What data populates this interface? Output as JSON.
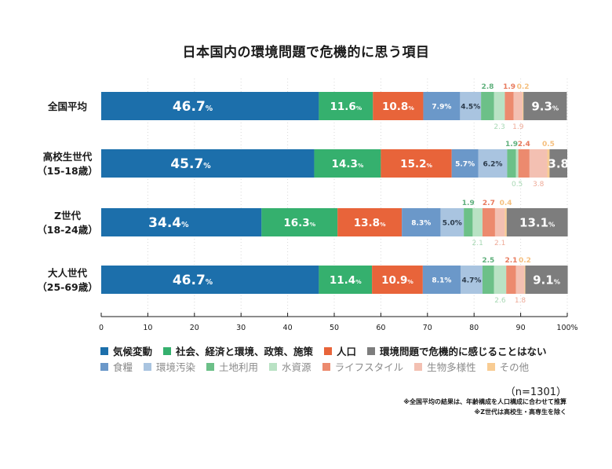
{
  "chart_data": {
    "type": "bar",
    "orientation": "horizontal",
    "stacked": true,
    "title": "日本国内の環境問題で危機的に思う項目",
    "categories": [
      {
        "line1": "全国平均",
        "line2": ""
      },
      {
        "line1": "高校生世代",
        "line2": "（15-18歳）"
      },
      {
        "line1": "Z世代",
        "line2": "（18-24歳）"
      },
      {
        "line1": "大人世代",
        "line2": "（25-69歳）"
      }
    ],
    "series": [
      {
        "name": "気候変動",
        "color": "#1c6fab",
        "values": [
          46.7,
          45.7,
          34.4,
          46.7
        ],
        "labels": [
          "46.7",
          "45.7",
          "34.4",
          "46.7"
        ],
        "label_style": "big-pct",
        "text_color": "#ffffff"
      },
      {
        "name": "社会、経済と環境、政策、施策",
        "color": "#35b06e",
        "values": [
          11.6,
          14.3,
          16.3,
          11.4
        ],
        "labels": [
          "11.6",
          "14.3",
          "16.3",
          "11.4"
        ],
        "label_style": "mid-pct",
        "text_color": "#ffffff"
      },
      {
        "name": "人口",
        "color": "#e8643a",
        "values": [
          10.8,
          15.2,
          13.8,
          10.9
        ],
        "labels": [
          "10.8",
          "15.2",
          "13.8",
          "10.9"
        ],
        "label_style": "mid-pct",
        "text_color": "#ffffff"
      },
      {
        "name": "食糧",
        "color": "#6b98c9",
        "values": [
          7.9,
          5.7,
          8.3,
          8.1
        ],
        "labels": [
          "7.9%",
          "5.7%",
          "8.3%",
          "8.1%"
        ],
        "label_style": "small",
        "text_color": "#ffffff"
      },
      {
        "name": "環境汚染",
        "color": "#a9c4e0",
        "values": [
          4.5,
          6.2,
          5.0,
          4.7
        ],
        "labels": [
          "4.5%",
          "6.2%",
          "5.0%",
          "4.7%"
        ],
        "label_style": "small",
        "text_color": "#2b3a4a"
      },
      {
        "name": "土地利用",
        "color": "#6cc088",
        "values": [
          2.8,
          1.9,
          1.9,
          2.5
        ],
        "labels": [
          "2.8",
          "1.9",
          "1.9",
          "2.5"
        ],
        "label_style": "above",
        "text_color": "#5fb07c"
      },
      {
        "name": "水資源",
        "color": "#b9e2c4",
        "values": [
          2.3,
          0.5,
          2.1,
          2.6
        ],
        "labels": [
          "2.3",
          "0.5",
          "2.1",
          "2.6"
        ],
        "label_style": "below",
        "text_color": "#a8d8b4"
      },
      {
        "name": "ライフスタイル",
        "color": "#ec8a6e",
        "values": [
          1.9,
          2.4,
          2.7,
          2.1
        ],
        "labels": [
          "1.9",
          "2.4",
          "2.7",
          "2.1"
        ],
        "label_style": "above",
        "text_color": "#e87a5d"
      },
      {
        "name": "生物多様性",
        "color": "#f3c0b2",
        "values": [
          1.9,
          3.8,
          2.1,
          1.8
        ],
        "labels": [
          "1.9",
          "3.8",
          "2.1",
          "1.8"
        ],
        "label_style": "below",
        "text_color": "#eeaa98"
      },
      {
        "name": "その他",
        "color": "#f8cc93",
        "values": [
          0.2,
          0.5,
          0.4,
          0.2
        ],
        "labels": [
          "0.2",
          "0.5",
          "0.4",
          "0.2"
        ],
        "label_style": "above",
        "text_color": "#f5bf7e"
      },
      {
        "name": "環境問題で危機的に感じることはない",
        "color": "#7d7d7d",
        "values": [
          9.3,
          3.8,
          13.1,
          9.1
        ],
        "labels": [
          "9.3",
          "3.8",
          "13.1",
          "9.1"
        ],
        "label_style": "big-pct-gray",
        "text_color": "#ffffff"
      }
    ],
    "last_segment_pct_shown": [
      true,
      false,
      true,
      true
    ],
    "xlim": [
      0,
      100
    ],
    "xticks": [
      "0",
      "10",
      "20",
      "30",
      "40",
      "50",
      "60",
      "70",
      "80",
      "90",
      "100%"
    ],
    "xtick_values": [
      0,
      10,
      20,
      30,
      40,
      50,
      60,
      70,
      80,
      90,
      100
    ],
    "grid": "vertical dotted",
    "legend_placement": "bottom",
    "legend_rows": [
      [
        "気候変動",
        "社会、経済と環境、政策、施策",
        "人口",
        "環境問題で危機的に感じることはない"
      ],
      [
        "食糧",
        "環境汚染",
        "土地利用",
        "水資源",
        "ライフスタイル",
        "生物多様性",
        "その他"
      ]
    ],
    "xlabel": "",
    "ylabel": ""
  },
  "footer": {
    "sample_size": "（n=1301）",
    "note_1": "※全国平均の結果は、年齢構成を人口構成に合わせて推算",
    "note_2": "※Z世代は高校生・高専生を除く"
  }
}
